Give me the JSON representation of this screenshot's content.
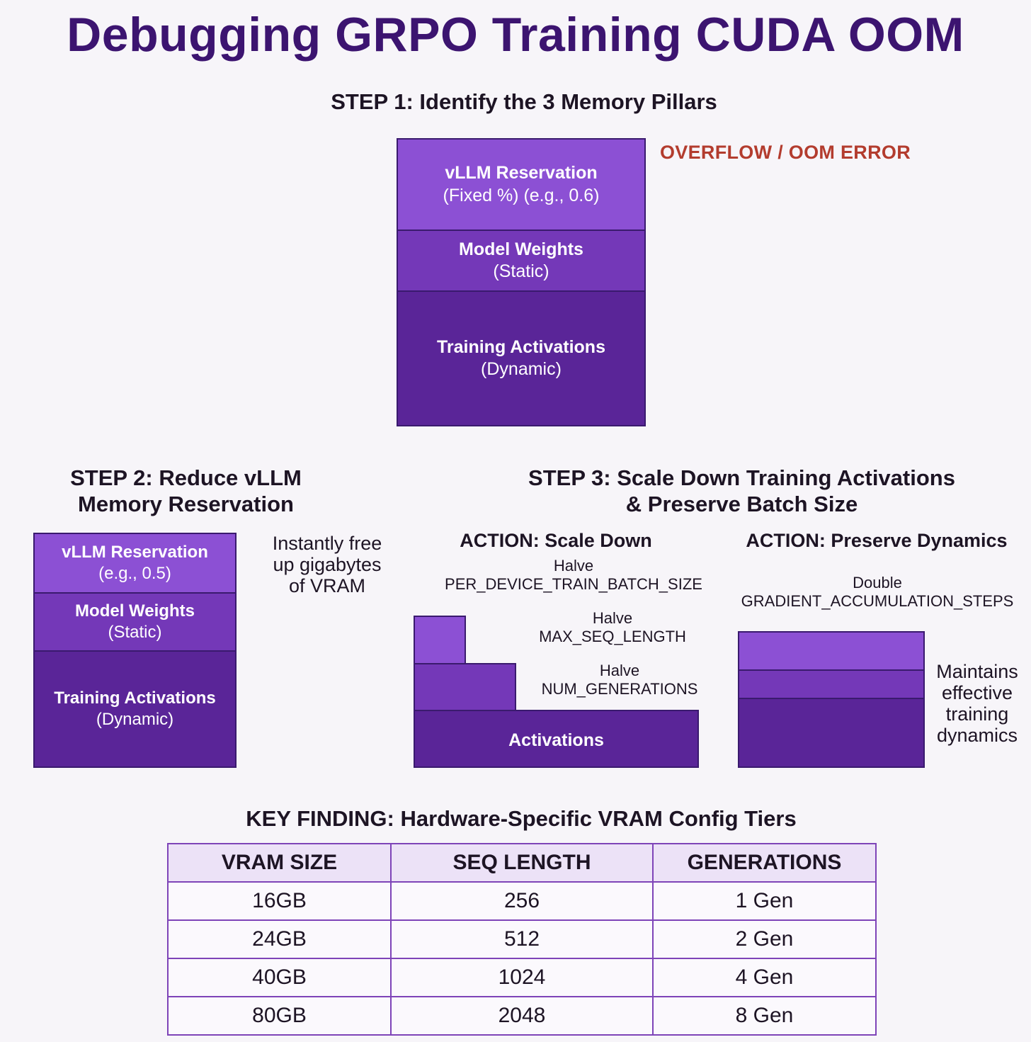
{
  "title": "Debugging GRPO Training CUDA OOM",
  "step1": {
    "heading": "STEP 1: Identify the 3 Memory Pillars",
    "overflow_label": "OVERFLOW / OOM ERROR",
    "pillars": [
      {
        "label": "vLLM Reservation",
        "sub": "(Fixed %) (e.g., 0.6)"
      },
      {
        "label": "Model Weights",
        "sub": "(Static)"
      },
      {
        "label": "Training Activations",
        "sub": "(Dynamic)"
      }
    ]
  },
  "step2": {
    "heading_line1": "STEP 2: Reduce vLLM",
    "heading_line2": "Memory Reservation",
    "pillars": [
      {
        "label": "vLLM Reservation",
        "sub": "(e.g., 0.5)"
      },
      {
        "label": "Model Weights",
        "sub": "(Static)"
      },
      {
        "label": "Training Activations",
        "sub": "(Dynamic)"
      }
    ],
    "note_lines": [
      "Instantly free",
      "up gigabytes",
      "of VRAM"
    ]
  },
  "step3": {
    "heading_line1": "STEP 3: Scale Down Training Activations",
    "heading_line2": "& Preserve Batch Size",
    "scale_down": {
      "title": "ACTION: Scale Down",
      "actions": [
        {
          "verb": "Halve",
          "param": "PER_DEVICE_TRAIN_BATCH_SIZE"
        },
        {
          "verb": "Halve",
          "param": "MAX_SEQ_LENGTH"
        },
        {
          "verb": "Halve",
          "param": "NUM_GENERATIONS"
        }
      ],
      "block_label": "Activations"
    },
    "preserve": {
      "title": "ACTION: Preserve Dynamics",
      "verb": "Double",
      "param": "GRADIENT_ACCUMULATION_STEPS",
      "note_lines": [
        "Maintains",
        "effective",
        "training",
        "dynamics"
      ]
    }
  },
  "key_finding": {
    "heading": "KEY FINDING: Hardware-Specific VRAM Config Tiers",
    "columns": [
      "VRAM SIZE",
      "SEQ LENGTH",
      "GENERATIONS"
    ],
    "rows": [
      [
        "16GB",
        "256",
        "1 Gen"
      ],
      [
        "24GB",
        "512",
        "2 Gen"
      ],
      [
        "40GB",
        "1024",
        "4 Gen"
      ],
      [
        "80GB",
        "2048",
        "8 Gen"
      ]
    ]
  },
  "colors": {
    "title": "#3c1470",
    "overflow": "#b33c2e",
    "segment_light": "#8c50d4",
    "segment_mid": "#7438b8",
    "segment_dark": "#5a2598",
    "table_border": "#7e44b8",
    "table_header": "#ece2f7"
  }
}
